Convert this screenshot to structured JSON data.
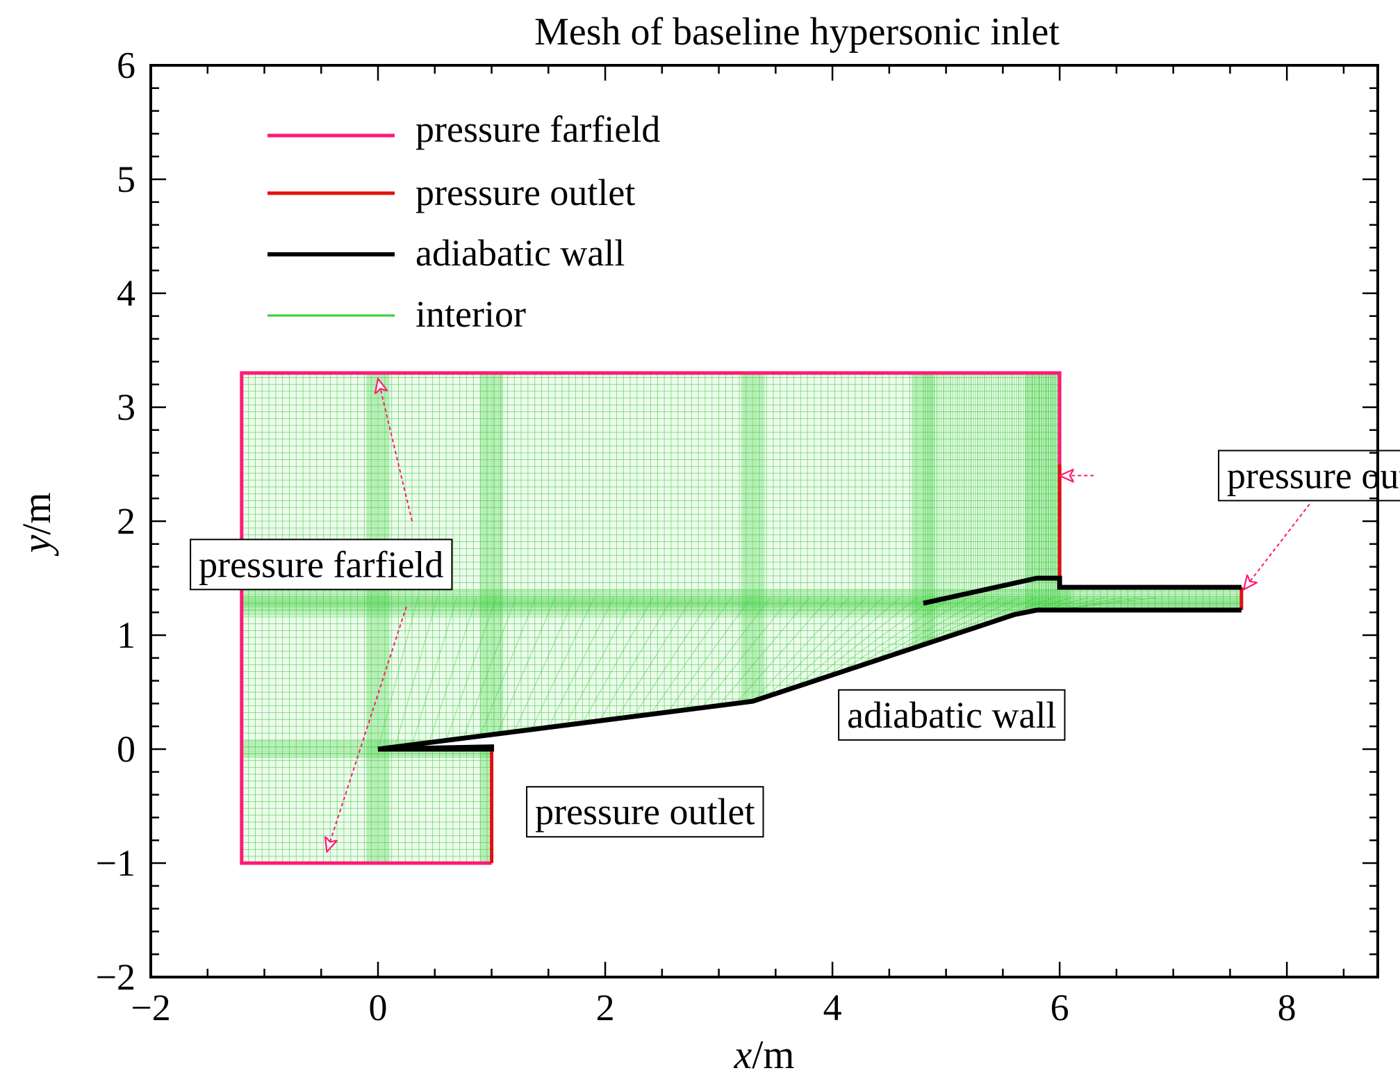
{
  "chart_data": {
    "type": "line",
    "title": "Mesh of baseline hypersonic inlet",
    "xlabel": {
      "var": "x",
      "unit": "/m"
    },
    "ylabel": {
      "var": "y",
      "unit": "/m"
    },
    "xlim": [
      -2,
      8.8
    ],
    "ylim": [
      -2,
      6
    ],
    "xticks": [
      {
        "value": -2,
        "label": "−2"
      },
      {
        "value": 0,
        "label": "0"
      },
      {
        "value": 2,
        "label": "2"
      },
      {
        "value": 4,
        "label": "4"
      },
      {
        "value": 6,
        "label": "6"
      },
      {
        "value": 8,
        "label": "8"
      }
    ],
    "yticks": [
      {
        "value": -2,
        "label": "−2"
      },
      {
        "value": -1,
        "label": "−1"
      },
      {
        "value": 0,
        "label": "0"
      },
      {
        "value": 1,
        "label": "1"
      },
      {
        "value": 2,
        "label": "2"
      },
      {
        "value": 3,
        "label": "3"
      },
      {
        "value": 4,
        "label": "4"
      },
      {
        "value": 5,
        "label": "5"
      },
      {
        "value": 6,
        "label": "6"
      }
    ],
    "x_minor_step": 0.5,
    "y_minor_step": 0.2,
    "legend": {
      "placement": "top-left",
      "entries": [
        {
          "key": "farfield",
          "label": "pressure farfield",
          "color": "#ff1a75"
        },
        {
          "key": "outlet",
          "label": "pressure outlet",
          "color": "#e01010"
        },
        {
          "key": "wall",
          "label": "adiabatic wall",
          "color": "#000000"
        },
        {
          "key": "interior",
          "label": "interior",
          "color": "#33cc33"
        }
      ]
    },
    "series": [
      {
        "name": "pressure farfield",
        "color": "#ff1a75",
        "points": [
          [
            1.0,
            -1.0
          ],
          [
            -1.2,
            -1.0
          ],
          [
            -1.2,
            3.3
          ],
          [
            6.0,
            3.3
          ],
          [
            6.0,
            1.5
          ]
        ]
      },
      {
        "name": "pressure outlet (lower)",
        "color": "#e01010",
        "points": [
          [
            1.0,
            0.0
          ],
          [
            1.0,
            -1.0
          ]
        ]
      },
      {
        "name": "pressure outlet (upper)",
        "color": "#e01010",
        "points": [
          [
            6.0,
            2.5
          ],
          [
            6.0,
            1.5
          ]
        ]
      },
      {
        "name": "pressure outlet (isolator exit)",
        "color": "#e01010",
        "points": [
          [
            7.6,
            1.42
          ],
          [
            7.6,
            1.22
          ]
        ]
      },
      {
        "name": "adiabatic wall (ramp)",
        "color": "#000000",
        "points": [
          [
            0.0,
            0.0
          ],
          [
            1.0,
            0.0
          ],
          [
            1.0,
            0.02
          ],
          [
            0.0,
            0.0
          ],
          [
            3.3,
            0.42
          ],
          [
            5.6,
            1.18
          ],
          [
            5.8,
            1.22
          ],
          [
            7.6,
            1.22
          ]
        ]
      },
      {
        "name": "adiabatic wall (cowl)",
        "color": "#000000",
        "points": [
          [
            4.8,
            1.28
          ],
          [
            5.8,
            1.5
          ],
          [
            6.0,
            1.5
          ],
          [
            6.0,
            1.42
          ],
          [
            7.6,
            1.42
          ]
        ]
      }
    ],
    "mesh_regions": [
      {
        "name": "interior",
        "color": "#33cc33",
        "outline": [
          [
            -1.2,
            -1.0
          ],
          [
            1.0,
            -1.0
          ],
          [
            1.0,
            0.0
          ],
          [
            0.0,
            0.0
          ],
          [
            3.3,
            0.42
          ],
          [
            5.6,
            1.18
          ],
          [
            5.8,
            1.22
          ],
          [
            7.6,
            1.22
          ],
          [
            7.6,
            1.42
          ],
          [
            6.0,
            1.42
          ],
          [
            6.0,
            3.3
          ],
          [
            -1.2,
            3.3
          ]
        ]
      }
    ],
    "annotations": [
      {
        "key": "farfield_label",
        "text": "pressure farfield",
        "anchor": [
          -0.5,
          1.62
        ],
        "arrows": [
          [
            [
              -0.4,
              1.62
            ],
            [
              -1.2,
              1.65
            ]
          ],
          [
            [
              0.3,
              2.0
            ],
            [
              0.0,
              3.25
            ]
          ],
          [
            [
              0.25,
              1.25
            ],
            [
              -0.45,
              -0.9
            ]
          ]
        ]
      },
      {
        "key": "outlet_label_upper",
        "text": "pressure outlet",
        "anchor": [
          8.44,
          2.4
        ],
        "arrows": [
          [
            [
              6.3,
              2.4
            ],
            [
              6.0,
              2.4
            ]
          ],
          [
            [
              8.2,
              2.15
            ],
            [
              7.62,
              1.4
            ]
          ]
        ]
      },
      {
        "key": "wall_label",
        "text": "adiabatic wall",
        "anchor": [
          5.05,
          0.3
        ],
        "arrows": []
      },
      {
        "key": "outlet_label_lower",
        "text": "pressure outlet",
        "anchor": [
          2.35,
          -0.55
        ],
        "arrows": []
      }
    ]
  }
}
